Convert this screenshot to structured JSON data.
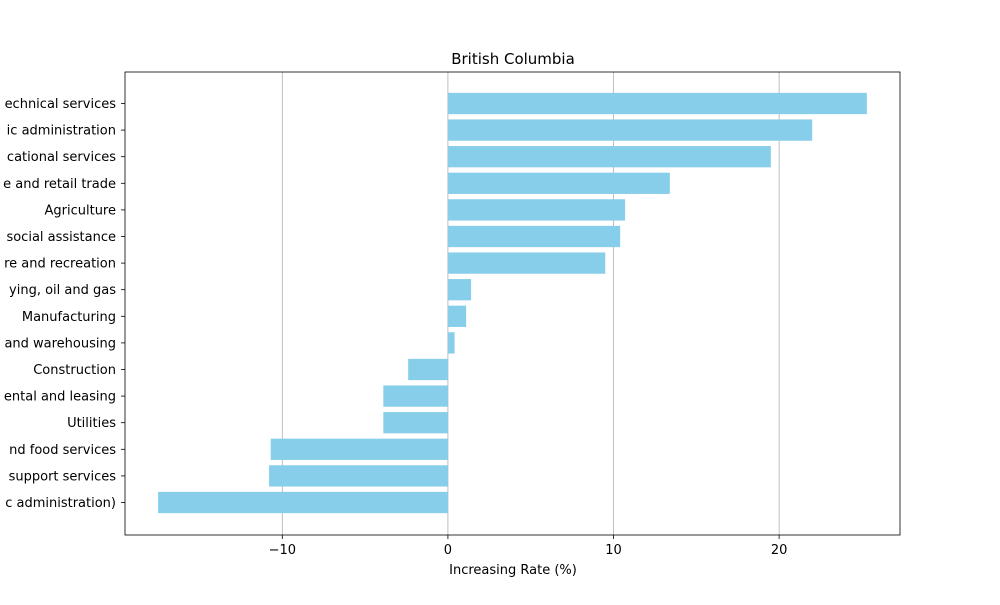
{
  "chart_data": {
    "type": "bar",
    "orientation": "horizontal",
    "title": "British Columbia",
    "xlabel": "Increasing Rate (%)",
    "ylabel": "",
    "xlim": [
      -19.5,
      27.3
    ],
    "xticks": [
      -10,
      0,
      10,
      20
    ],
    "xtick_labels": [
      "−10",
      "0",
      "10",
      "20"
    ],
    "grid": "vertical",
    "bar_color": "#87CEEB",
    "categories": [
      "echnical services",
      "ic administration",
      "cational services",
      "e and retail trade",
      "Agriculture",
      "social assistance",
      "re and recreation",
      "ying, oil and gas",
      "Manufacturing",
      "and warehousing",
      "Construction",
      "ental and leasing",
      "Utilities",
      "nd food services",
      "support services",
      "c administration)"
    ],
    "values": [
      25.3,
      22.0,
      19.5,
      13.4,
      10.7,
      10.4,
      9.5,
      1.4,
      1.1,
      0.4,
      -2.4,
      -3.9,
      -3.9,
      -10.7,
      -10.8,
      -17.5
    ]
  }
}
